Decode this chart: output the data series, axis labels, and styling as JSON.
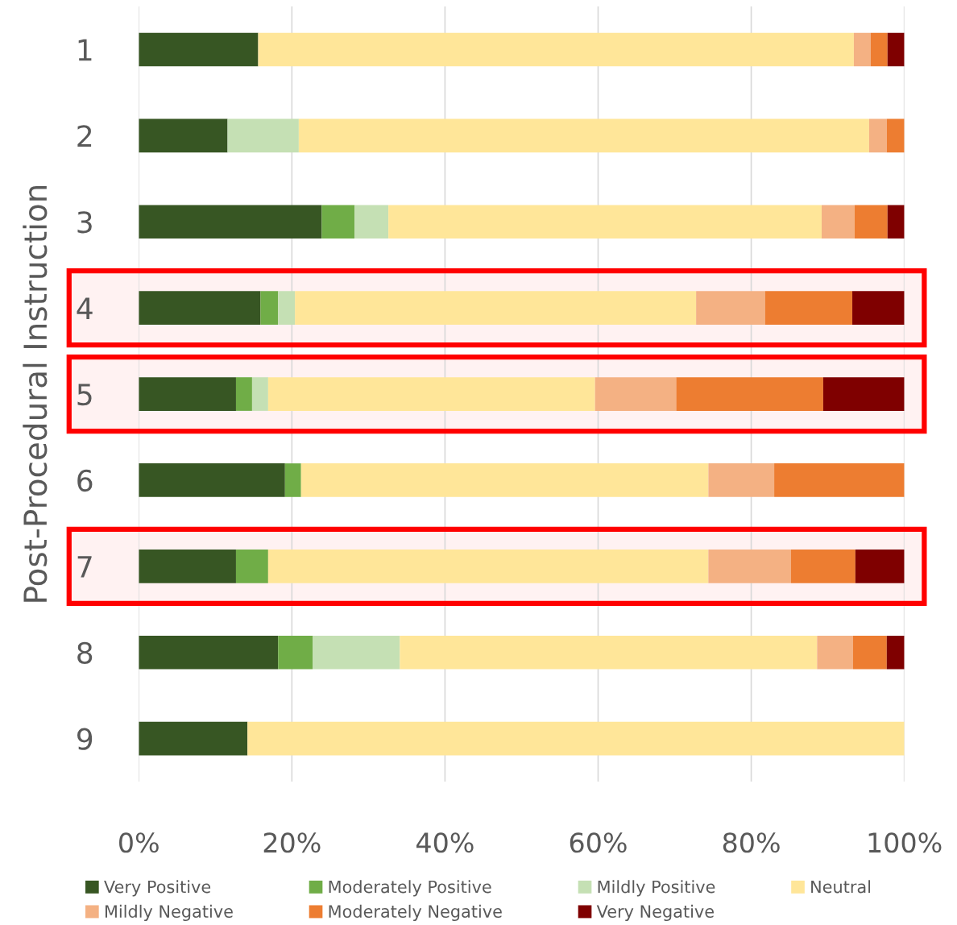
{
  "chart_data": {
    "type": "bar",
    "orientation": "horizontal",
    "stacked": true,
    "ylabel": "Post-Procedural Instruction",
    "categories": [
      "1",
      "2",
      "3",
      "4",
      "5",
      "6",
      "7",
      "8",
      "9"
    ],
    "series": [
      {
        "name": "Very Positive",
        "color": "#375623",
        "values": [
          15.6,
          11.6,
          23.9,
          15.9,
          12.7,
          19.1,
          12.7,
          18.2,
          14.2
        ]
      },
      {
        "name": "Moderately Positive",
        "color": "#70ad47",
        "values": [
          0,
          0,
          4.3,
          2.3,
          2.1,
          2.1,
          4.2,
          4.5,
          0
        ]
      },
      {
        "name": "Mildly Positive",
        "color": "#c5e0b4",
        "values": [
          0,
          9.3,
          4.4,
          2.2,
          2.1,
          0,
          0,
          11.4,
          0
        ]
      },
      {
        "name": "Neutral",
        "color": "#ffe699",
        "values": [
          77.8,
          74.5,
          56.6,
          52.4,
          42.7,
          53.2,
          57.5,
          54.5,
          85.8
        ]
      },
      {
        "name": "Mildly Negative",
        "color": "#f4b183",
        "values": [
          2.2,
          2.3,
          4.3,
          9.0,
          10.6,
          8.6,
          10.8,
          4.7,
          0
        ]
      },
      {
        "name": "Moderately Negative",
        "color": "#ed7d31",
        "values": [
          2.2,
          2.3,
          4.3,
          11.4,
          19.2,
          17.0,
          8.4,
          4.4,
          0
        ]
      },
      {
        "name": "Very Negative",
        "color": "#7f0000",
        "values": [
          2.2,
          0,
          2.2,
          6.8,
          10.6,
          0,
          6.4,
          2.3,
          0
        ]
      }
    ],
    "xlim": [
      0,
      100
    ],
    "xticks": [
      {
        "value": 0,
        "label": "0%"
      },
      {
        "value": 20,
        "label": "20%"
      },
      {
        "value": 40,
        "label": "40%"
      },
      {
        "value": 60,
        "label": "60%"
      },
      {
        "value": 80,
        "label": "80%"
      },
      {
        "value": 100,
        "label": "100%"
      }
    ],
    "grid": "x",
    "legend": "bottom",
    "bands": [
      {
        "axis": "y",
        "from": "4",
        "to": "4",
        "color": "#ff0000"
      },
      {
        "axis": "y",
        "from": "5",
        "to": "5",
        "color": "#ff0000"
      },
      {
        "axis": "y",
        "from": "7",
        "to": "7",
        "color": "#ff0000"
      }
    ]
  }
}
